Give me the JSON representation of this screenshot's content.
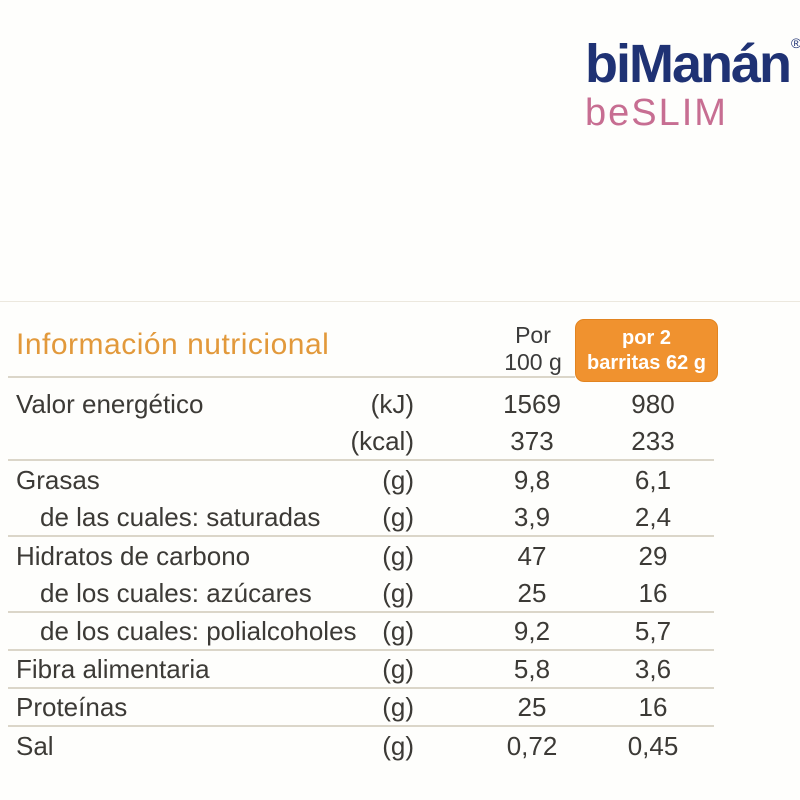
{
  "logo": {
    "brand": "biManán",
    "registered": "®",
    "sub": "beSLIM",
    "brand_color": "#1f3274",
    "sub_color": "#c76e92"
  },
  "table": {
    "title": "Información nutricional",
    "title_color": "#e2993b",
    "text_color": "#3c3a36",
    "divider_color": "#dbd6c9",
    "col_per100": {
      "line1": "Por",
      "line2": "100 g"
    },
    "col_per2": {
      "line1": "por 2",
      "line2": "barritas 62 g",
      "bg": "#f0922f",
      "text_color": "#ffffff"
    },
    "rows": [
      {
        "label": "Valor energético",
        "indent": false,
        "unit": "(kJ)",
        "per100": "1569",
        "per2": "980",
        "line_after": false
      },
      {
        "label": "",
        "indent": false,
        "unit": "(kcal)",
        "per100": "373",
        "per2": "233",
        "line_after": true
      },
      {
        "label": "Grasas",
        "indent": false,
        "unit": "(g)",
        "per100": "9,8",
        "per2": "6,1",
        "line_after": false
      },
      {
        "label": "de las cuales: saturadas",
        "indent": true,
        "unit": "(g)",
        "per100": "3,9",
        "per2": "2,4",
        "line_after": true
      },
      {
        "label": "Hidratos de carbono",
        "indent": false,
        "unit": "(g)",
        "per100": "47",
        "per2": "29",
        "line_after": false
      },
      {
        "label": "de los cuales: azúcares",
        "indent": true,
        "unit": "(g)",
        "per100": "25",
        "per2": "16",
        "line_after": true
      },
      {
        "label": "de los cuales: polialcoholes",
        "indent": true,
        "unit": "(g)",
        "per100": "9,2",
        "per2": "5,7",
        "line_after": true
      },
      {
        "label": "Fibra alimentaria",
        "indent": false,
        "unit": "(g)",
        "per100": "5,8",
        "per2": "3,6",
        "line_after": true
      },
      {
        "label": "Proteínas",
        "indent": false,
        "unit": "(g)",
        "per100": "25",
        "per2": "16",
        "line_after": true
      },
      {
        "label": "Sal",
        "indent": false,
        "unit": "(g)",
        "per100": "0,72",
        "per2": "0,45",
        "line_after": false
      }
    ]
  }
}
